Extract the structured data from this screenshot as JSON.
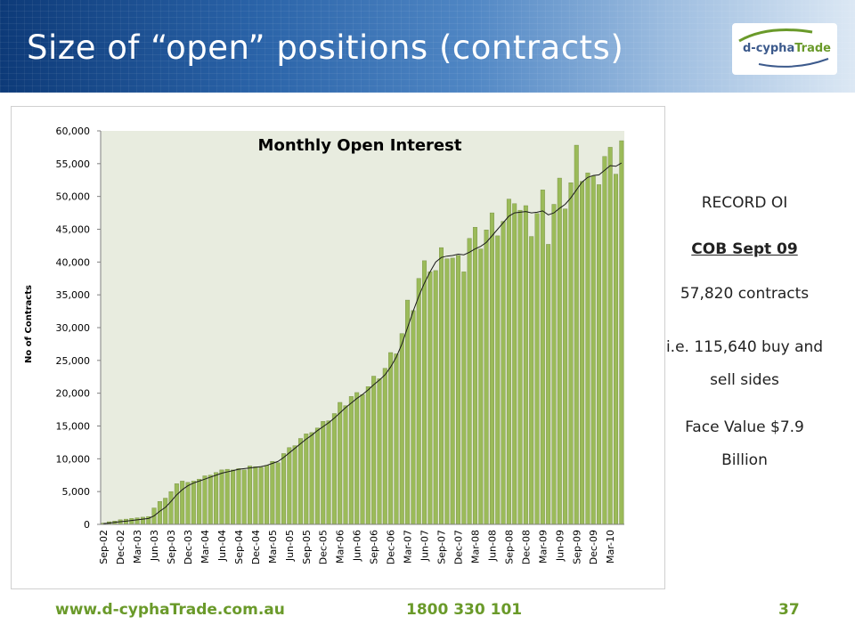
{
  "slide": {
    "title": "Size of “open” positions (contracts)",
    "logo_text_main": "d-cypha",
    "logo_text_accent": "Trade"
  },
  "side_panel": {
    "record": "RECORD OI",
    "cob": "COB Sept 09",
    "contracts": "57,820 contracts",
    "buy_sell": "i.e. 115,640 buy and sell sides",
    "face_value": "Face Value $7.9 Billion"
  },
  "footer": {
    "url": "www.d-cyphaTrade.com.au",
    "phone": "1800 330 101",
    "page": "37"
  },
  "colors": {
    "bar_fill": "#9bbb59",
    "bar_stroke": "#71893f",
    "plot_bg": "#e8ecdf",
    "trend_line": "#1a1a1a",
    "accent_green": "#6a9a2a",
    "banner_blue": "#1f4f93"
  },
  "chart_data": {
    "type": "bar",
    "title": "Monthly Open Interest",
    "xlabel": "",
    "ylabel": "No of Contracts",
    "ylim": [
      0,
      60000
    ],
    "yticks": [
      "0",
      "5,000",
      "10,000",
      "15,000",
      "20,000",
      "25,000",
      "30,000",
      "35,000",
      "40,000",
      "45,000",
      "50,000",
      "55,000",
      "60,000"
    ],
    "grid": false,
    "legend": "none",
    "categories": [
      "Sep-02",
      "Oct-02",
      "Nov-02",
      "Dec-02",
      "Jan-03",
      "Feb-03",
      "Mar-03",
      "Apr-03",
      "May-03",
      "Jun-03",
      "Jul-03",
      "Aug-03",
      "Sep-03",
      "Oct-03",
      "Nov-03",
      "Dec-03",
      "Jan-04",
      "Feb-04",
      "Mar-04",
      "Apr-04",
      "May-04",
      "Jun-04",
      "Jul-04",
      "Aug-04",
      "Sep-04",
      "Oct-04",
      "Nov-04",
      "Dec-04",
      "Jan-05",
      "Feb-05",
      "Mar-05",
      "Apr-05",
      "May-05",
      "Jun-05",
      "Jul-05",
      "Aug-05",
      "Sep-05",
      "Oct-05",
      "Nov-05",
      "Dec-05",
      "Jan-06",
      "Feb-06",
      "Mar-06",
      "Apr-06",
      "May-06",
      "Jun-06",
      "Jul-06",
      "Aug-06",
      "Sep-06",
      "Oct-06",
      "Nov-06",
      "Dec-06",
      "Jan-07",
      "Feb-07",
      "Mar-07",
      "Apr-07",
      "May-07",
      "Jun-07",
      "Jul-07",
      "Aug-07",
      "Sep-07",
      "Oct-07",
      "Nov-07",
      "Dec-07",
      "Jan-08",
      "Feb-08",
      "Mar-08",
      "Apr-08",
      "May-08",
      "Jun-08",
      "Jul-08",
      "Aug-08",
      "Sep-08",
      "Oct-08",
      "Nov-08",
      "Dec-08",
      "Jan-09",
      "Feb-09",
      "Mar-09",
      "Apr-09",
      "May-09",
      "Jun-09",
      "Jul-09",
      "Aug-09",
      "Sep-09",
      "Oct-09",
      "Nov-09",
      "Dec-09",
      "Jan-10",
      "Feb-10",
      "Mar-10",
      "Apr-10",
      "May-10"
    ],
    "x_tick_labels": [
      "Sep-02",
      "Dec-02",
      "Mar-03",
      "Jun-03",
      "Sep-03",
      "Dec-03",
      "Mar-04",
      "Jun-04",
      "Sep-04",
      "Dec-04",
      "Mar-05",
      "Jun-05",
      "Sep-05",
      "Dec-05",
      "Mar-06",
      "Jun-06",
      "Sep-06",
      "Dec-06",
      "Mar-07",
      "Jun-07",
      "Sep-07",
      "Dec-07",
      "Mar-08",
      "Jun-08",
      "Sep-08",
      "Dec-08",
      "Mar-09",
      "Jun-09",
      "Sep-09",
      "Dec-09",
      "Mar-10"
    ],
    "values": [
      200,
      400,
      500,
      700,
      800,
      900,
      1000,
      1100,
      1200,
      2500,
      3500,
      4000,
      5000,
      6200,
      6600,
      6400,
      6600,
      6900,
      7400,
      7500,
      7900,
      8300,
      8400,
      8300,
      8500,
      8300,
      8900,
      8800,
      8700,
      9000,
      9600,
      9400,
      10800,
      11700,
      12000,
      13100,
      13800,
      14000,
      14700,
      15700,
      15800,
      16900,
      18600,
      18100,
      19500,
      20100,
      19800,
      21000,
      22600,
      22200,
      23800,
      26200,
      26000,
      29100,
      34200,
      32600,
      37500,
      40200,
      38500,
      38700,
      42200,
      40500,
      40600,
      41000,
      38500,
      43600,
      45300,
      42000,
      44900,
      47500,
      44000,
      46200,
      49600,
      48900,
      47900,
      48600,
      43900,
      47400,
      51000,
      42700,
      48800,
      52800,
      48100,
      52100,
      57820,
      52300,
      53600,
      53100,
      51800,
      56100,
      57500,
      53400,
      58500
    ],
    "trend_line": {
      "name": "",
      "values": [
        100,
        200,
        300,
        400,
        500,
        600,
        700,
        800,
        900,
        1300,
        2000,
        2600,
        3500,
        4500,
        5300,
        5900,
        6300,
        6600,
        6900,
        7200,
        7500,
        7800,
        8000,
        8200,
        8400,
        8500,
        8600,
        8700,
        8800,
        9000,
        9300,
        9600,
        10200,
        10900,
        11600,
        12300,
        13000,
        13600,
        14300,
        14900,
        15500,
        16200,
        17000,
        17800,
        18500,
        19200,
        19800,
        20500,
        21300,
        22000,
        22800,
        24000,
        25500,
        27500,
        30000,
        32500,
        34800,
        36800,
        38500,
        40000,
        40700,
        40900,
        41000,
        41200,
        41100,
        41500,
        42000,
        42400,
        43000,
        44000,
        45000,
        46000,
        47000,
        47500,
        47600,
        47700,
        47500,
        47600,
        47800,
        47200,
        47500,
        48200,
        48800,
        49800,
        51000,
        52200,
        52900,
        53200,
        53300,
        54000,
        54700,
        54600,
        55100
      ]
    }
  }
}
